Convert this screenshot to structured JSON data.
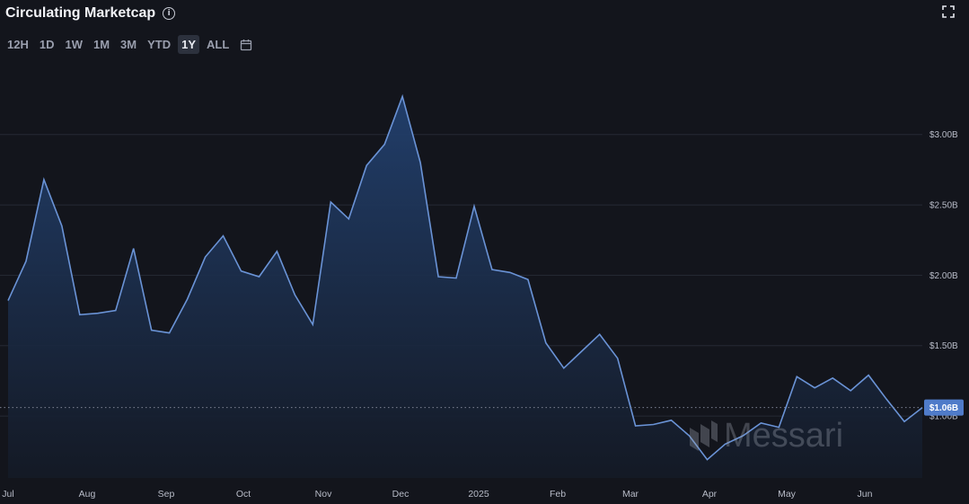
{
  "header": {
    "title": "Circulating Marketcap",
    "info_icon": "info-icon",
    "expand_icon": "expand-icon"
  },
  "ranges": {
    "items": [
      "12H",
      "1D",
      "1W",
      "1M",
      "3M",
      "YTD",
      "1Y",
      "ALL"
    ],
    "active": "1Y",
    "calendar_icon": "calendar-icon"
  },
  "watermark": {
    "text": "Messari",
    "icon": "messari-logo-icon"
  },
  "colors": {
    "line": "#6a93d6",
    "fill_top": "#22406e",
    "fill_bottom": "#141a26",
    "tag": "#4f7bc9",
    "grid": "#262a34"
  },
  "chart_data": {
    "type": "area",
    "x_labels": [
      "Jul",
      "Aug",
      "Sep",
      "Oct",
      "Nov",
      "Dec",
      "2025",
      "Feb",
      "Mar",
      "Apr",
      "May",
      "Jun"
    ],
    "y_ticks": [
      "$1.00B",
      "$1.50B",
      "$2.00B",
      "$2.50B",
      "$3.00B"
    ],
    "ylim": [
      0.56,
      3.56
    ],
    "current_value_label": "$1.06B",
    "current_value": 1.06,
    "grid": true,
    "values": [
      1.82,
      2.1,
      2.68,
      2.35,
      1.72,
      1.73,
      1.75,
      2.19,
      1.61,
      1.59,
      1.83,
      2.13,
      2.28,
      2.03,
      1.99,
      2.17,
      1.86,
      1.65,
      2.52,
      2.4,
      2.78,
      2.93,
      3.27,
      2.8,
      1.99,
      1.98,
      2.49,
      2.04,
      2.02,
      1.97,
      1.52,
      1.34,
      1.46,
      1.58,
      1.41,
      0.93,
      0.94,
      0.97,
      0.86,
      0.69,
      0.8,
      0.86,
      0.95,
      0.92,
      1.28,
      1.2,
      1.27,
      1.18,
      1.29,
      1.12,
      0.96,
      1.06
    ]
  }
}
